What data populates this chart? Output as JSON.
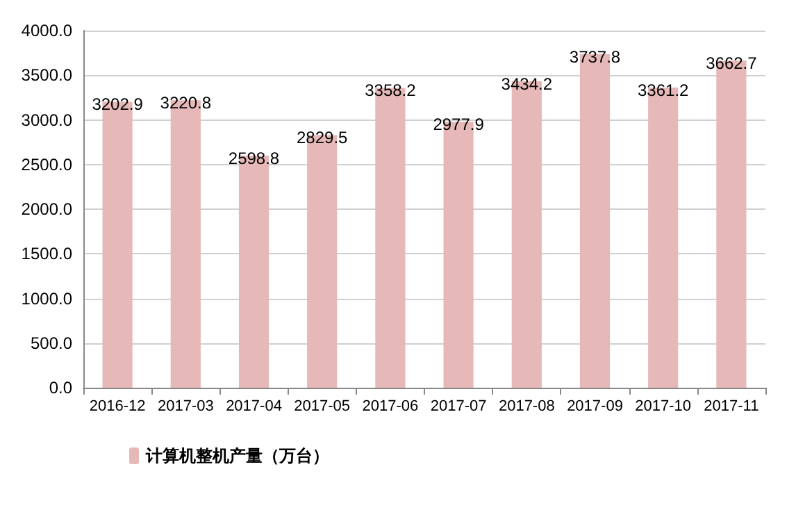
{
  "chart_data": {
    "type": "bar",
    "categories": [
      "2016-12",
      "2017-03",
      "2017-04",
      "2017-05",
      "2017-06",
      "2017-07",
      "2017-08",
      "2017-09",
      "2017-10",
      "2017-11"
    ],
    "series": [
      {
        "name": "计算机整机产量（万台）",
        "color": "#e6b9b8",
        "values": [
          3202.9,
          3220.8,
          2598.8,
          2829.5,
          3358.2,
          2977.9,
          3434.2,
          3737.8,
          3361.2,
          3662.7
        ]
      }
    ],
    "ylim": [
      0,
      4000
    ],
    "yticks": [
      {
        "value": 0,
        "label": "0.0"
      },
      {
        "value": 500,
        "label": "500.0"
      },
      {
        "value": 1000,
        "label": "1000.0"
      },
      {
        "value": 1500,
        "label": "1500.0"
      },
      {
        "value": 2000,
        "label": "2000.0"
      },
      {
        "value": 2500,
        "label": "2500.0"
      },
      {
        "value": 3000,
        "label": "3000.0"
      },
      {
        "value": 3500,
        "label": "3500.0"
      },
      {
        "value": 4000,
        "label": "4000.0"
      }
    ],
    "grid": "y",
    "legend": "bottom left",
    "data_labels": true
  }
}
